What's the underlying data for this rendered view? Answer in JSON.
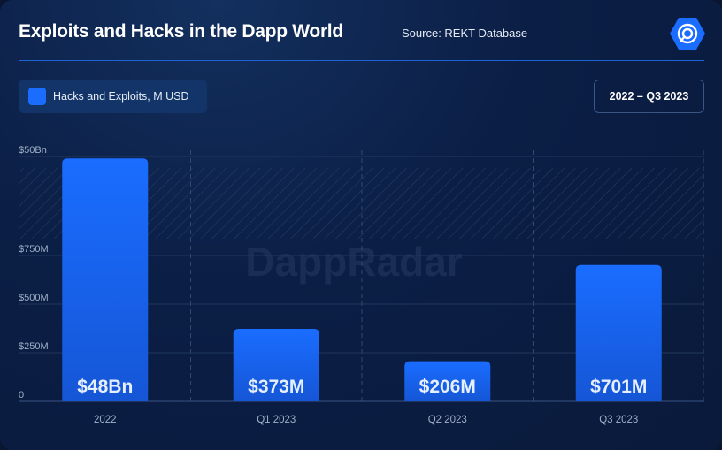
{
  "header": {
    "title": "Exploits and Hacks in the Dapp World",
    "source": "Source: REKT Database",
    "range": "2022 – Q3 2023"
  },
  "watermark": "DappRadar",
  "colors": {
    "bar": "#1a6dff",
    "background": "#0b1e45",
    "accent": "#1d63d8"
  },
  "chart_data": {
    "type": "bar",
    "categories": [
      "2022",
      "Q1 2023",
      "Q2 2023",
      "Q3 2023"
    ],
    "series": [
      {
        "name": "Hacks and Exploits, M USD",
        "values": [
          48000,
          373,
          206,
          701
        ]
      }
    ],
    "data_labels": [
      "$48Bn",
      "$373M",
      "$206M",
      "$701M"
    ],
    "y_ticks": [
      {
        "value": 0,
        "label": "0"
      },
      {
        "value": 250,
        "label": "$250M"
      },
      {
        "value": 500,
        "label": "$500M"
      },
      {
        "value": 750,
        "label": "$750M"
      },
      {
        "value": 50000,
        "label": "$50Bn"
      }
    ],
    "axis_break": true,
    "grid": true,
    "legend": "top-left"
  }
}
